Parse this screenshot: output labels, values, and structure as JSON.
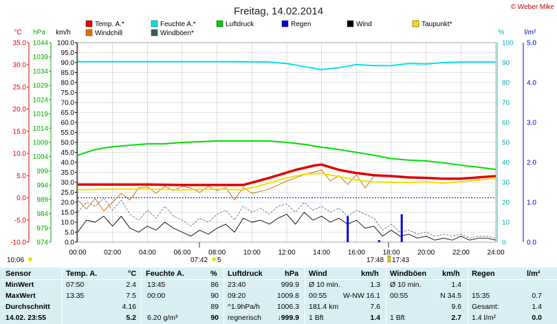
{
  "copyright": "© Weber Mike",
  "chart_data": {
    "type": "line",
    "title": "Freitag, 14.02.2014",
    "legend": [
      "Temp. A.*",
      "Windchill",
      "Feuchte A.*",
      "Windböen*",
      "Luftdruck",
      "Regen",
      "Wind",
      "Taupunkt*"
    ],
    "legend_colors": [
      "#e00000",
      "#e07000",
      "#00e0e0",
      "#306060",
      "#00cc00",
      "#0000dd",
      "#000000",
      "#f0e000"
    ],
    "units": {
      "temp": "°C",
      "press": "hPa",
      "wind": "km/h",
      "hum": "%",
      "rain": "l/m²"
    },
    "x_ticks": [
      "00:00",
      "02:00",
      "04:00",
      "06:00",
      "08:00",
      "10:00",
      "12:00",
      "14:00",
      "16:00",
      "18:00",
      "20:00",
      "22:00",
      "24:00"
    ],
    "axes": {
      "temp": {
        "min": -10,
        "max": 35,
        "ticks": [
          "35.0",
          "30.0",
          "25.0",
          "20.0",
          "15.0",
          "10.0",
          "5.0",
          "0.0",
          "-5.0",
          "-10.0"
        ]
      },
      "press": {
        "min": 974,
        "max": 1044,
        "ticks": [
          "1044",
          "1039",
          "1034",
          "1029",
          "1024",
          "1019",
          "1014",
          "1009",
          "1004",
          "999",
          "994",
          "989",
          "984",
          "979",
          "974"
        ]
      },
      "wind": {
        "min": 0,
        "max": 100,
        "ticks": [
          "100.0",
          "95.0",
          "90.0",
          "85.0",
          "80.0",
          "75.0",
          "70.0",
          "65.0",
          "60.0",
          "55.0",
          "50.0",
          "45.0",
          "40.0",
          "35.0",
          "30.0",
          "25.0",
          "20.0",
          "15.0",
          "10.0",
          "5.0",
          "0.0"
        ]
      },
      "hum": {
        "min": 0,
        "max": 100,
        "ticks": [
          "100",
          "90",
          "80",
          "70",
          "60",
          "50",
          "40",
          "30",
          "20",
          "10",
          "0"
        ]
      },
      "rain": {
        "min": 0,
        "max": 5,
        "ticks": [
          "5.0",
          "4.0",
          "3.0",
          "2.0",
          "1.0",
          "0.0"
        ]
      }
    },
    "series": [
      {
        "name": "Temp. A.*",
        "axis": "temp",
        "points": [
          [
            0,
            3.0
          ],
          [
            2,
            3.0
          ],
          [
            4,
            3.0
          ],
          [
            6,
            2.9
          ],
          [
            8,
            2.9
          ],
          [
            9.5,
            2.9
          ],
          [
            11,
            4.5
          ],
          [
            12.5,
            6.3
          ],
          [
            13.6,
            7.3
          ],
          [
            14,
            7.5
          ],
          [
            15,
            6.3
          ],
          [
            16,
            5.6
          ],
          [
            17,
            5.1
          ],
          [
            18,
            4.9
          ],
          [
            19,
            4.6
          ],
          [
            20,
            4.5
          ],
          [
            21,
            4.3
          ],
          [
            22,
            4.3
          ],
          [
            23,
            4.6
          ],
          [
            24,
            4.9
          ]
        ]
      },
      {
        "name": "Windchill",
        "axis": "temp",
        "points": [
          [
            0,
            -0.5
          ],
          [
            0.5,
            -2.5
          ],
          [
            1,
            -0.2
          ],
          [
            1.5,
            -3.0
          ],
          [
            2,
            -1.0
          ],
          [
            2.5,
            1.0
          ],
          [
            3,
            -0.5
          ],
          [
            3.5,
            2.3
          ],
          [
            4,
            2.5
          ],
          [
            4.5,
            1.0
          ],
          [
            5,
            2.6
          ],
          [
            5.5,
            1.6
          ],
          [
            6,
            2.6
          ],
          [
            6.5,
            2.2
          ],
          [
            7,
            1.2
          ],
          [
            7.5,
            2.6
          ],
          [
            8,
            1.6
          ],
          [
            8.5,
            2.3
          ],
          [
            9,
            -0.5
          ],
          [
            9.5,
            2.4
          ],
          [
            10,
            1.0
          ],
          [
            11,
            2.0
          ],
          [
            12,
            3.8
          ],
          [
            13,
            5.2
          ],
          [
            14,
            6.3
          ],
          [
            14.5,
            3.8
          ],
          [
            15,
            5.0
          ],
          [
            15.5,
            3.0
          ],
          [
            16,
            5.2
          ],
          [
            16.5,
            2.2
          ],
          [
            17,
            4.9
          ]
        ]
      },
      {
        "name": "Taupunkt*",
        "axis": "temp",
        "points": [
          [
            0,
            1.8
          ],
          [
            2,
            2.0
          ],
          [
            4,
            2.0
          ],
          [
            6,
            1.8
          ],
          [
            8,
            2.0
          ],
          [
            9.5,
            1.8
          ],
          [
            10.5,
            2.8
          ],
          [
            12,
            4.5
          ],
          [
            13,
            5.3
          ],
          [
            14,
            5.5
          ],
          [
            15,
            4.8
          ],
          [
            16,
            4.0
          ],
          [
            17,
            3.6
          ],
          [
            18,
            3.5
          ],
          [
            19,
            3.5
          ],
          [
            20,
            3.6
          ],
          [
            21,
            3.3
          ],
          [
            22,
            3.6
          ],
          [
            23,
            4.0
          ],
          [
            24,
            4.3
          ]
        ]
      },
      {
        "name": "Feuchte A.*",
        "axis": "hum",
        "points": [
          [
            0,
            90.5
          ],
          [
            4,
            90.5
          ],
          [
            8,
            90.5
          ],
          [
            11,
            90.3
          ],
          [
            12,
            89.5
          ],
          [
            13,
            88
          ],
          [
            14,
            86.5
          ],
          [
            15,
            87.5
          ],
          [
            16,
            89
          ],
          [
            17,
            88.5
          ],
          [
            18,
            88.5
          ],
          [
            19,
            89.5
          ],
          [
            20,
            89.3
          ],
          [
            21,
            90
          ],
          [
            22,
            90.3
          ],
          [
            24,
            90.3
          ]
        ]
      },
      {
        "name": "Luftdruck",
        "axis": "press",
        "points": [
          [
            0,
            1004.5
          ],
          [
            1,
            1006.5
          ],
          [
            2,
            1007.5
          ],
          [
            3,
            1008
          ],
          [
            4,
            1008.5
          ],
          [
            5,
            1008.5
          ],
          [
            6,
            1009
          ],
          [
            8,
            1009.5
          ],
          [
            10,
            1009.5
          ],
          [
            11,
            1009.5
          ],
          [
            12,
            1009
          ],
          [
            13,
            1008.3
          ],
          [
            14,
            1007.3
          ],
          [
            15,
            1006.5
          ],
          [
            16,
            1005.5
          ],
          [
            17,
            1004.5
          ],
          [
            18,
            1003.3
          ],
          [
            19,
            1002.8
          ],
          [
            20,
            1002.5
          ],
          [
            21,
            1001.8
          ],
          [
            22,
            1001
          ],
          [
            23,
            1000.3
          ],
          [
            24,
            999.5
          ]
        ]
      },
      {
        "name": "Wind",
        "axis": "wind",
        "points": [
          [
            0,
            5
          ],
          [
            0.5,
            11
          ],
          [
            1,
            10
          ],
          [
            1.5,
            13
          ],
          [
            2,
            8
          ],
          [
            2.5,
            13
          ],
          [
            3,
            7
          ],
          [
            3.5,
            5
          ],
          [
            4,
            8
          ],
          [
            4.5,
            6
          ],
          [
            5,
            10
          ],
          [
            5.5,
            7
          ],
          [
            6,
            5
          ],
          [
            6.5,
            3
          ],
          [
            7,
            6
          ],
          [
            7.5,
            4
          ],
          [
            8,
            7
          ],
          [
            8.5,
            9
          ],
          [
            9,
            5
          ],
          [
            9.5,
            12
          ],
          [
            10,
            10
          ],
          [
            10.5,
            11
          ],
          [
            11,
            9
          ],
          [
            11.5,
            12
          ],
          [
            12,
            14
          ],
          [
            12.5,
            9
          ],
          [
            13,
            15
          ],
          [
            13.5,
            11
          ],
          [
            14,
            13
          ],
          [
            14.5,
            10
          ],
          [
            15,
            12
          ],
          [
            15.5,
            9
          ],
          [
            16,
            11
          ],
          [
            16.5,
            7
          ],
          [
            17,
            8
          ],
          [
            17.5,
            3
          ],
          [
            18,
            6
          ],
          [
            18.5,
            3
          ],
          [
            19,
            4
          ],
          [
            19.5,
            2
          ],
          [
            20,
            3
          ],
          [
            20.5,
            1
          ],
          [
            21,
            2
          ],
          [
            21.5,
            1
          ],
          [
            22,
            3
          ],
          [
            22.5,
            1
          ],
          [
            23,
            2
          ],
          [
            23.5,
            2
          ],
          [
            24,
            1
          ]
        ]
      },
      {
        "name": "Windböen*",
        "axis": "wind",
        "points": [
          [
            0,
            15
          ],
          [
            0.5,
            20
          ],
          [
            1,
            18
          ],
          [
            1.5,
            22
          ],
          [
            2,
            16
          ],
          [
            2.5,
            21
          ],
          [
            3,
            14
          ],
          [
            3.5,
            11
          ],
          [
            4,
            16
          ],
          [
            4.5,
            12
          ],
          [
            5,
            18
          ],
          [
            5.5,
            13
          ],
          [
            6,
            11
          ],
          [
            6.5,
            8
          ],
          [
            7,
            12
          ],
          [
            7.5,
            10
          ],
          [
            8,
            14
          ],
          [
            8.5,
            16
          ],
          [
            9,
            11
          ],
          [
            9.5,
            18
          ],
          [
            10,
            15
          ],
          [
            10.5,
            17
          ],
          [
            11,
            14
          ],
          [
            11.5,
            18
          ],
          [
            12,
            19
          ],
          [
            12.5,
            15
          ],
          [
            13,
            20
          ],
          [
            13.5,
            16
          ],
          [
            14,
            18
          ],
          [
            14.5,
            15
          ],
          [
            15,
            17
          ],
          [
            15.5,
            13
          ],
          [
            16,
            16
          ],
          [
            16.5,
            14
          ],
          [
            17,
            12
          ],
          [
            17.5,
            6
          ],
          [
            18,
            9
          ],
          [
            18.5,
            5
          ],
          [
            19,
            6
          ],
          [
            19.5,
            4
          ],
          [
            20,
            5
          ],
          [
            20.5,
            3
          ],
          [
            21,
            4
          ],
          [
            21.5,
            3
          ],
          [
            22,
            4
          ],
          [
            22.5,
            2
          ],
          [
            23,
            3
          ],
          [
            23.5,
            3
          ],
          [
            24,
            2
          ]
        ]
      }
    ],
    "regen_bars": [
      [
        15.5,
        0.65
      ],
      [
        17.3,
        0.05
      ],
      [
        18.6,
        0.7
      ]
    ],
    "taupunkt_ref": 0.0
  },
  "markers": {
    "sunrise": "07:42",
    "moonrise": "5",
    "sunset": "17:48",
    "sunset2": "17:43",
    "time_now": "10:06"
  },
  "stats": {
    "headers": {
      "sensor": "Sensor",
      "temp": "Temp. A.",
      "temp_unit": "°C",
      "hum": "Feuchte A.",
      "hum_unit": "%",
      "press": "Luftdruck",
      "press_unit": "hPa",
      "wind": "Wind",
      "wind_unit": "km/h",
      "gust": "Windböen",
      "gust_unit": "km/h",
      "rain": "Regen",
      "rain_unit": "l/m²"
    },
    "rows": [
      {
        "label": "MinWert",
        "temp_t": "07:50",
        "temp_v": "2.4",
        "hum_t": "13:45",
        "hum_v": "86",
        "press_t": "23:40",
        "press_v": "999.9",
        "wind_t": "Ø 10 min.",
        "wind_v": "1.3",
        "gust_t": "Ø 10 min.",
        "gust_v": "1.4",
        "rain_t": "",
        "rain_v": ""
      },
      {
        "label": "MaxWert",
        "temp_t": "13:35",
        "temp_v": "7.5",
        "hum_t": "00:00",
        "hum_v": "90",
        "press_t": "09:20",
        "press_v": "1009.8",
        "wind_t": "00:55",
        "wind_m": "W-NW 16.1",
        "wind_v": "",
        "gust_t": "00:55",
        "gust_m": "N 34.5",
        "gust_v": "",
        "rain_t": "15:35",
        "rain_v": "0.7"
      },
      {
        "label": "Durchschnitt",
        "temp_t": "",
        "temp_v": "4.16",
        "hum_t": "",
        "hum_v": "89",
        "press_t": "^1.9hPa/h",
        "press_v": "1006.3",
        "wind_t": "181.4 km",
        "wind_v": "7.6",
        "gust_t": "",
        "gust_v": "9.6",
        "rain_t": "Gesamt:",
        "rain_v": "1.4"
      },
      {
        "label": "14.02. 23:55",
        "temp_t": "",
        "temp_v": "5.2",
        "hum_t": "6.20 g/m³",
        "hum_v": "90",
        "press_t": "regnerisch",
        "press_v": "↓999.9",
        "wind_t": "1 Bft",
        "wind_v": "1.4",
        "gust_t": "1 Bft",
        "gust_v": "2.7",
        "rain_t": "1.4 l/m²",
        "rain_v": "0.0"
      }
    ]
  }
}
